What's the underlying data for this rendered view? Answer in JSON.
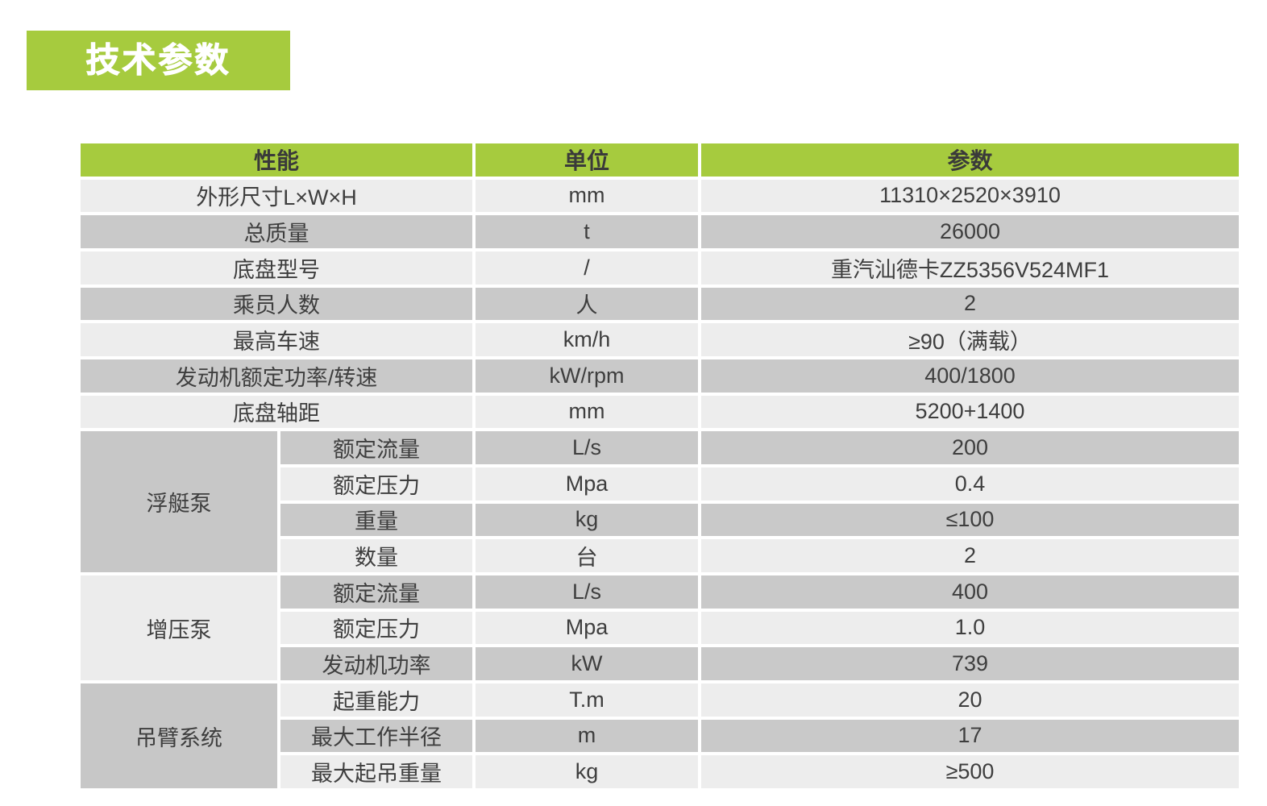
{
  "colors": {
    "accent_green": "#a6cb3e",
    "row_light_gray": "#ededed",
    "row_dark_gray": "#c9c9c9",
    "group_dark_gray": "#c7c7c7",
    "group_light_gray": "#ececec",
    "text_dark": "#3e3e3e"
  },
  "page_title": {
    "label": "技术参数"
  },
  "table": {
    "headers": {
      "performance": "性能",
      "unit": "单位",
      "value": "参数"
    },
    "rows": [
      {
        "label": "外形尺寸L×W×H",
        "unit": "mm",
        "value": "11310×2520×3910"
      },
      {
        "label": "总质量",
        "unit": "t",
        "value": "26000"
      },
      {
        "label": "底盘型号",
        "unit": "/",
        "value": "重汽汕德卡ZZ5356V524MF1"
      },
      {
        "label": "乘员人数",
        "unit": "人",
        "value": "2"
      },
      {
        "label": "最高车速",
        "unit": "km/h",
        "value": "≥90（满载）"
      },
      {
        "label": "发动机额定功率/转速",
        "unit": "kW/rpm",
        "value": "400/1800"
      },
      {
        "label": "底盘轴距",
        "unit": "mm",
        "value": "5200+1400"
      }
    ],
    "groups": [
      {
        "name": "浮艇泵",
        "rows": [
          {
            "label": "额定流量",
            "unit": "L/s",
            "value": "200"
          },
          {
            "label": "额定压力",
            "unit": "Mpa",
            "value": "0.4"
          },
          {
            "label": "重量",
            "unit": "kg",
            "value": "≤100"
          },
          {
            "label": "数量",
            "unit": "台",
            "value": "2"
          }
        ]
      },
      {
        "name": "增压泵",
        "rows": [
          {
            "label": "额定流量",
            "unit": "L/s",
            "value": "400"
          },
          {
            "label": "额定压力",
            "unit": "Mpa",
            "value": "1.0"
          },
          {
            "label": "发动机功率",
            "unit": "kW",
            "value": "739"
          }
        ]
      },
      {
        "name": "吊臂系统",
        "rows": [
          {
            "label": "起重能力",
            "unit": "T.m",
            "value": "20"
          },
          {
            "label": "最大工作半径",
            "unit": "m",
            "value": "17"
          },
          {
            "label": "最大起吊重量",
            "unit": "kg",
            "value": "≥500"
          }
        ]
      }
    ]
  }
}
